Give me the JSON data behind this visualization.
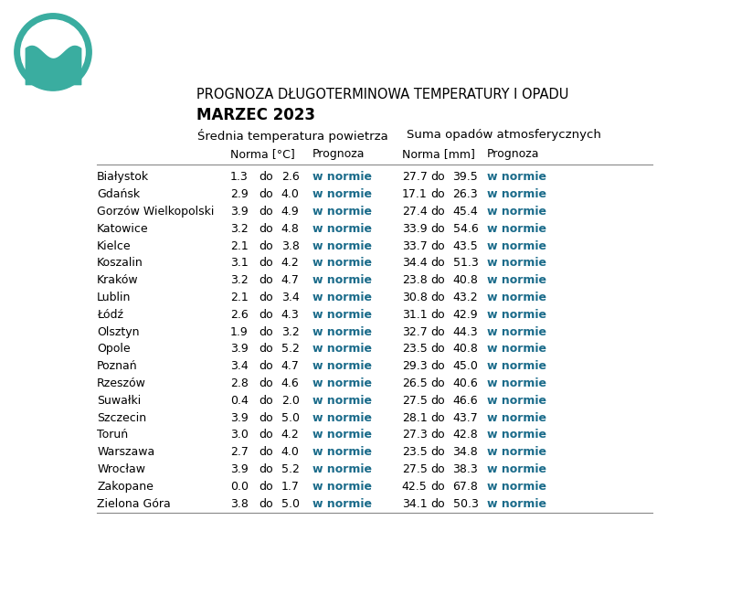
{
  "title_line1": "PROGNOZA DŁUGOTERMINOWA TEMPERATURY I OPADU",
  "title_line2": "MARZEC 2023",
  "header1": "Średnia temperatura powietrza",
  "header2": "Suma opadów atmosferycznych",
  "subheader_norma_temp": "Norma [°C]",
  "subheader_prognoza": "Prognoza",
  "subheader_norma_rain": "Norma [mm]",
  "subheader_prognoza2": "Prognoza",
  "cities": [
    "Białystok",
    "Gdańsk",
    "Gorzów Wielkopolski",
    "Katowice",
    "Kielce",
    "Koszalin",
    "Kraków",
    "Lublin",
    "Łódź",
    "Olsztyn",
    "Opole",
    "Poznań",
    "Rzeszów",
    "Suwałki",
    "Szczecin",
    "Toruń",
    "Warszawa",
    "Wrocław",
    "Zakopane",
    "Zielona Góra"
  ],
  "temp_min": [
    1.3,
    2.9,
    3.9,
    3.2,
    2.1,
    3.1,
    3.2,
    2.1,
    2.6,
    1.9,
    3.9,
    3.4,
    2.8,
    0.4,
    3.9,
    3.0,
    2.7,
    3.9,
    0.0,
    3.8
  ],
  "temp_max": [
    2.6,
    4.0,
    4.9,
    4.8,
    3.8,
    4.2,
    4.7,
    3.4,
    4.3,
    3.2,
    5.2,
    4.7,
    4.6,
    2.0,
    5.0,
    4.2,
    4.0,
    5.2,
    1.7,
    5.0
  ],
  "temp_prognoza": [
    "w normie",
    "w normie",
    "w normie",
    "w normie",
    "w normie",
    "w normie",
    "w normie",
    "w normie",
    "w normie",
    "w normie",
    "w normie",
    "w normie",
    "w normie",
    "w normie",
    "w normie",
    "w normie",
    "w normie",
    "w normie",
    "w normie",
    "w normie"
  ],
  "rain_min": [
    27.7,
    17.1,
    27.4,
    33.9,
    33.7,
    34.4,
    23.8,
    30.8,
    31.1,
    32.7,
    23.5,
    29.3,
    26.5,
    27.5,
    28.1,
    27.3,
    23.5,
    27.5,
    42.5,
    34.1
  ],
  "rain_max": [
    39.5,
    26.3,
    45.4,
    54.6,
    43.5,
    51.3,
    40.8,
    43.2,
    42.9,
    44.3,
    40.8,
    45.0,
    40.6,
    46.6,
    43.7,
    42.8,
    34.8,
    38.3,
    67.8,
    50.3
  ],
  "rain_prognoza": [
    "w normie",
    "w normie",
    "w normie",
    "w normie",
    "w normie",
    "w normie",
    "w normie",
    "w normie",
    "w normie",
    "w normie",
    "w normie",
    "w normie",
    "w normie",
    "w normie",
    "w normie",
    "w normie",
    "w normie",
    "w normie",
    "w normie",
    "w normie"
  ],
  "bg_color": "#ffffff",
  "text_color": "#000000",
  "prognoza_color": "#1a6b8a",
  "header_color": "#000000",
  "line_color": "#888888"
}
